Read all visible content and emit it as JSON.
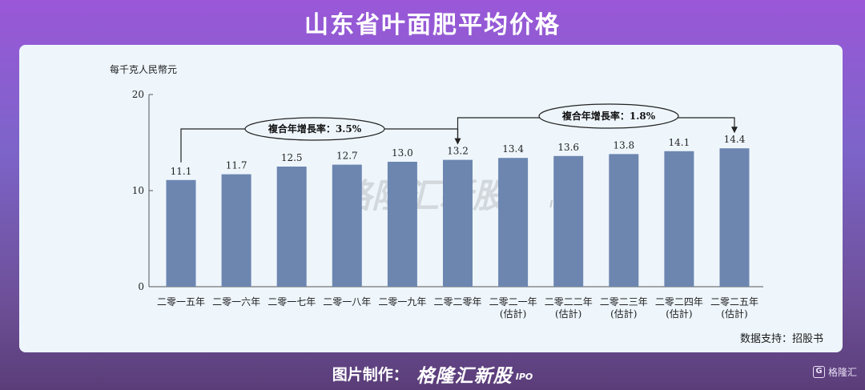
{
  "page": {
    "title": "山东省叶面肥平均价格",
    "source": "数据支持：招股书",
    "footer_label": "图片制作：",
    "footer_brand": "格隆汇新股",
    "footer_brand_sub": "IPO",
    "corner_icon": "g-logo-icon",
    "corner_label": "格隆汇"
  },
  "watermark": {
    "text": "格隆汇新股",
    "sub": "IPO"
  },
  "colors": {
    "bar": "#6c86b0",
    "card": "#eef6fc",
    "text": "#222222"
  },
  "chart_data": {
    "type": "bar",
    "ylabel": "每千克人民幣元",
    "ylim": [
      0,
      20
    ],
    "yticks": [
      0,
      10,
      20
    ],
    "categories": [
      [
        "二零一五年"
      ],
      [
        "二零一六年"
      ],
      [
        "二零一七年"
      ],
      [
        "二零一八年"
      ],
      [
        "二零一九年"
      ],
      [
        "二零二零年"
      ],
      [
        "二零二一年",
        "(估計)"
      ],
      [
        "二零二二年",
        "(估計)"
      ],
      [
        "二零二三年",
        "(估計)"
      ],
      [
        "二零二四年",
        "(估計)"
      ],
      [
        "二零二五年",
        "(估計)"
      ]
    ],
    "values": [
      11.1,
      11.7,
      12.5,
      12.7,
      13.0,
      13.2,
      13.4,
      13.6,
      13.8,
      14.1,
      14.4
    ],
    "value_labels": [
      "11.1",
      "11.7",
      "12.5",
      "12.7",
      "13.0",
      "13.2",
      "13.4",
      "13.6",
      "13.8",
      "14.1",
      "14.4"
    ],
    "annotations": [
      {
        "label": "複合年增長率：3.5%",
        "from_index": 0,
        "to_index": 5
      },
      {
        "label": "複合年增長率：1.8%",
        "from_index": 5,
        "to_index": 10
      }
    ],
    "grid": false
  }
}
